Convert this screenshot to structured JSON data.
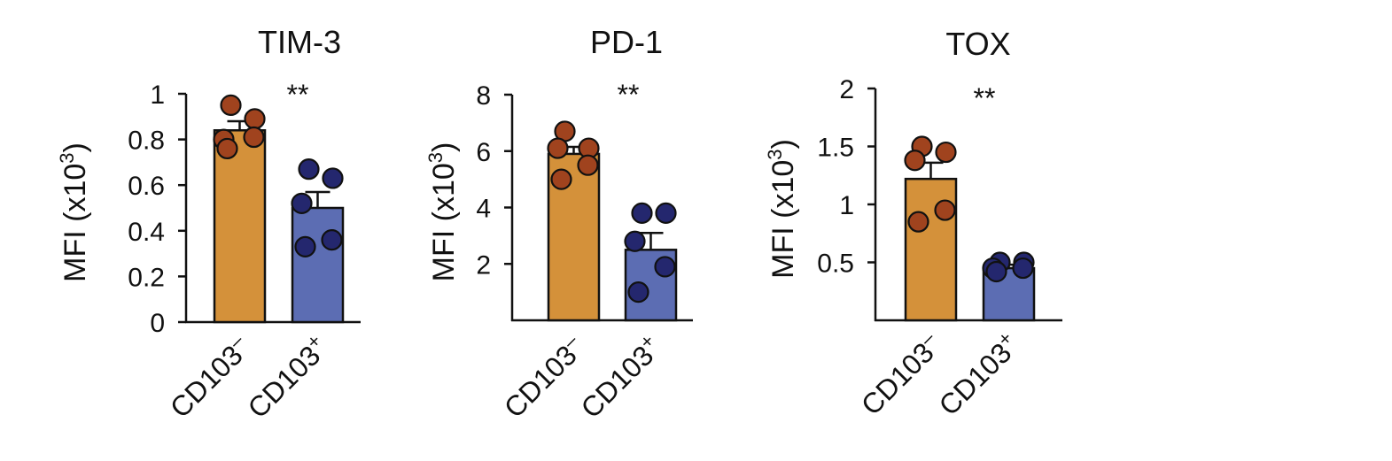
{
  "chart_data": [
    {
      "type": "bar",
      "title": "TIM-3",
      "ylabel": {
        "main": "MFI (x10",
        "sup": "3",
        "end": ")"
      },
      "ylim": [
        0,
        1
      ],
      "yticks": [
        "0",
        "0.2",
        "0.4",
        "0.6",
        "0.8",
        "1"
      ],
      "categories": [
        {
          "base": "CD103",
          "sup": "–"
        },
        {
          "base": "CD103",
          "sup": "+"
        }
      ],
      "means": [
        0.84,
        0.5
      ],
      "sem": [
        0.04,
        0.07
      ],
      "points": [
        [
          0.95,
          0.89,
          0.8,
          0.81,
          0.76
        ],
        [
          0.67,
          0.63,
          0.52,
          0.36,
          0.33
        ]
      ],
      "significance": "**"
    },
    {
      "type": "bar",
      "title": "PD-1",
      "ylabel": {
        "main": "MFI (x10",
        "sup": "3",
        "end": ")"
      },
      "ylim": [
        0,
        8
      ],
      "yticks": [
        "2",
        "4",
        "6",
        "8"
      ],
      "categories": [
        {
          "base": "CD103",
          "sup": "–"
        },
        {
          "base": "CD103",
          "sup": "+"
        }
      ],
      "means": [
        5.9,
        2.5
      ],
      "sem": [
        0.25,
        0.6
      ],
      "points": [
        [
          6.7,
          6.1,
          6.1,
          5.5,
          5.0
        ],
        [
          3.8,
          3.8,
          2.8,
          1.9,
          1.0
        ]
      ],
      "significance": "**"
    },
    {
      "type": "bar",
      "title": "TOX",
      "ylabel": {
        "main": "MFI (x10",
        "sup": "3",
        "end": ")"
      },
      "ylim": [
        0,
        2
      ],
      "yticks": [
        "0.5",
        "1",
        "1.5",
        "2"
      ],
      "categories": [
        {
          "base": "CD103",
          "sup": "–"
        },
        {
          "base": "CD103",
          "sup": "+"
        }
      ],
      "means": [
        1.22,
        0.45
      ],
      "sem": [
        0.14,
        0.03
      ],
      "points": [
        [
          1.5,
          1.45,
          1.38,
          0.95,
          0.85
        ],
        [
          0.5,
          0.5,
          0.45,
          0.45,
          0.42
        ]
      ],
      "significance": "**"
    }
  ],
  "colors": {
    "bar_neg": "#D4913A",
    "bar_pos": "#5C6DB3",
    "dot_neg": "#A0431E",
    "dot_pos": "#24276E",
    "ink": "#111111"
  }
}
